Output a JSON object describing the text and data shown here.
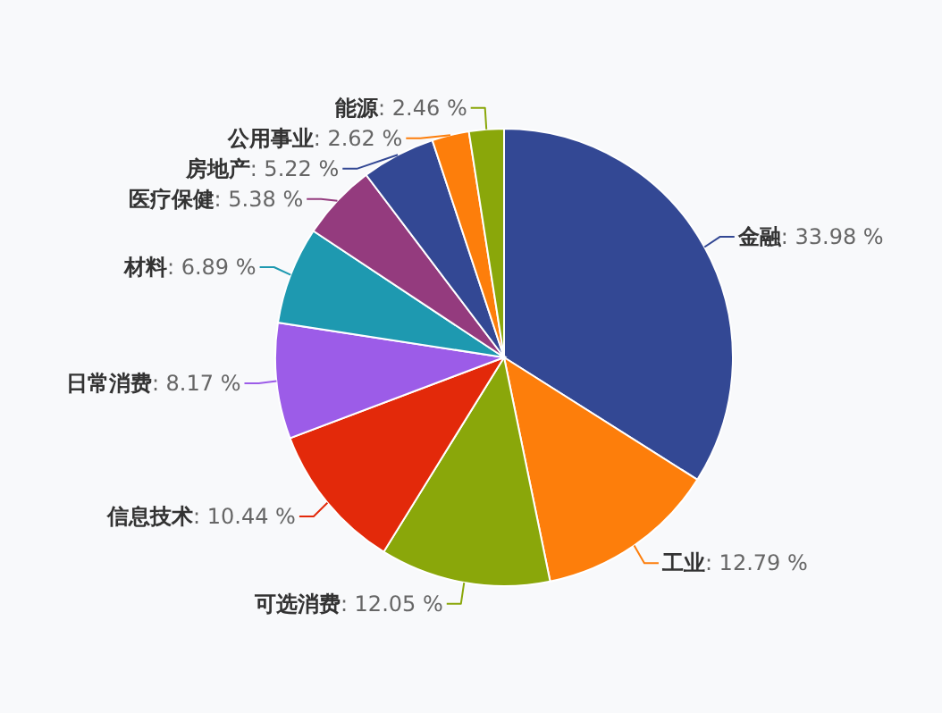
{
  "chart_data": {
    "type": "pie",
    "categories": [
      "金融",
      "工业",
      "可选消费",
      "信息技术",
      "日常消费",
      "材料",
      "医疗保健",
      "房地产",
      "公用事业",
      "能源"
    ],
    "values": [
      33.98,
      12.79,
      12.05,
      10.44,
      8.17,
      6.89,
      5.38,
      5.22,
      2.62,
      2.46
    ],
    "value_labels": [
      ": 33.98 %",
      ": 12.79 %",
      ": 12.05 %",
      ": 10.44 %",
      ": 8.17 %",
      ": 6.89 %",
      ": 5.38 %",
      ": 5.22 %",
      ": 2.62 %",
      ": 2.46 %"
    ],
    "colors": [
      "#334894",
      "#fd7e0b",
      "#8aa70a",
      "#e3290a",
      "#9c5ce8",
      "#1e99b0",
      "#943b7e",
      "#334894",
      "#fd7e0b",
      "#8aa70a"
    ]
  }
}
